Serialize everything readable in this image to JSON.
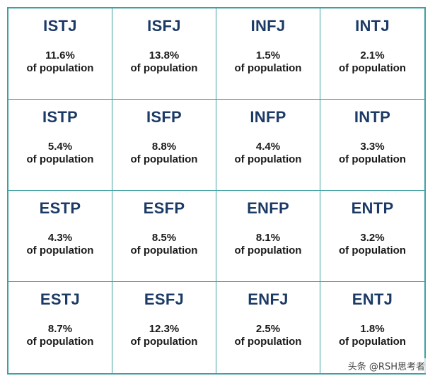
{
  "cells": [
    {
      "type": "ISTJ",
      "percent": "11.6%",
      "label": "of population"
    },
    {
      "type": "ISFJ",
      "percent": "13.8%",
      "label": "of population"
    },
    {
      "type": "INFJ",
      "percent": "1.5%",
      "label": "of population"
    },
    {
      "type": "INTJ",
      "percent": "2.1%",
      "label": "of population"
    },
    {
      "type": "ISTP",
      "percent": "5.4%",
      "label": "of population"
    },
    {
      "type": "ISFP",
      "percent": "8.8%",
      "label": "of population"
    },
    {
      "type": "INFP",
      "percent": "4.4%",
      "label": "of population"
    },
    {
      "type": "INTP",
      "percent": "3.3%",
      "label": "of population"
    },
    {
      "type": "ESTP",
      "percent": "4.3%",
      "label": "of population"
    },
    {
      "type": "ESFP",
      "percent": "8.5%",
      "label": "of population"
    },
    {
      "type": "ENFP",
      "percent": "8.1%",
      "label": "of population"
    },
    {
      "type": "ENTP",
      "percent": "3.2%",
      "label": "of population"
    },
    {
      "type": "ESTJ",
      "percent": "8.7%",
      "label": "of population"
    },
    {
      "type": "ESFJ",
      "percent": "12.3%",
      "label": "of population"
    },
    {
      "type": "ENFJ",
      "percent": "2.5%",
      "label": "of population"
    },
    {
      "type": "ENTJ",
      "percent": "1.8%",
      "label": "of population"
    }
  ],
  "watermark": "头条 @RSH思考者",
  "colors": {
    "border": "#3fa0a0",
    "type_text": "#1b3a66",
    "body_text": "#1a1a1a"
  }
}
